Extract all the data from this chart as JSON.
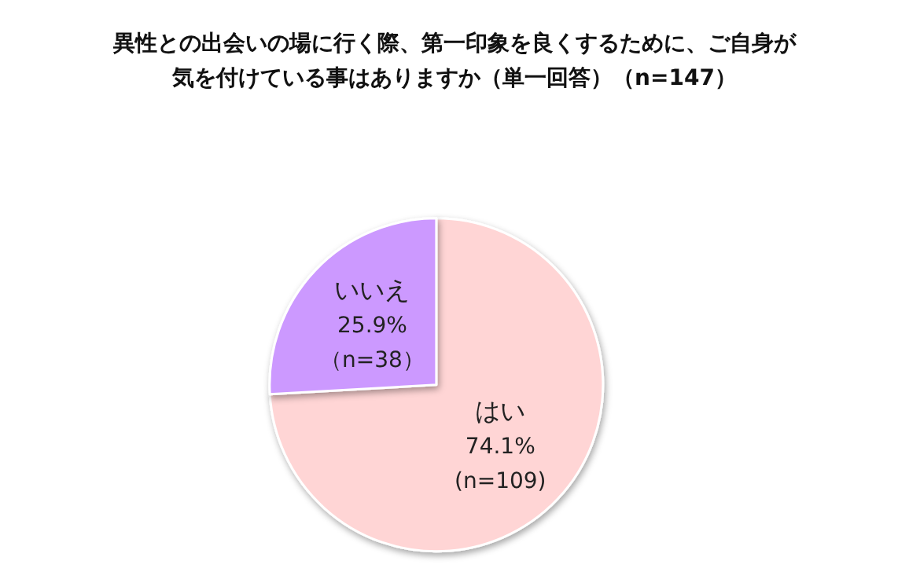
{
  "chart_data": {
    "type": "pie",
    "title": "異性との出会いの場に行く際、第一印象を良くするために、ご自身が気を付けている事はありますか（単一回答）（n=147）",
    "categories": [
      "はい",
      "いいえ"
    ],
    "values": [
      74.1,
      25.9
    ],
    "value_labels": [
      "74.1%\n(n=109)",
      "25.9%\n（n=38）"
    ],
    "colors": [
      "#ffd5d5",
      "#cc99ff"
    ],
    "legend": false
  }
}
